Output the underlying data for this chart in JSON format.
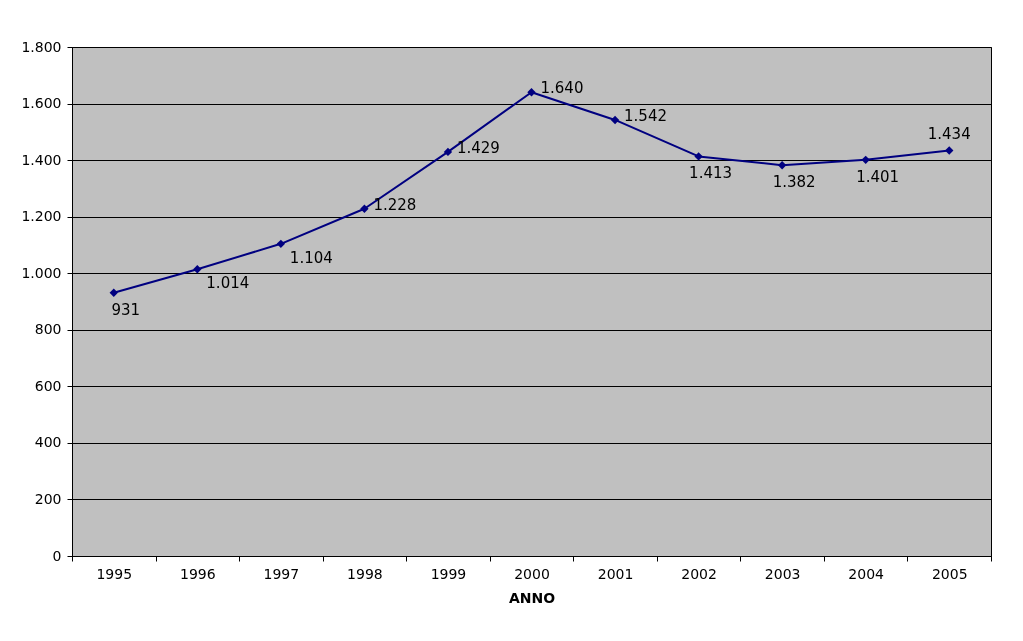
{
  "chart_data": {
    "type": "line",
    "xlabel": "ANNO",
    "categories": [
      "1995",
      "1996",
      "1997",
      "1998",
      "1999",
      "2000",
      "2001",
      "2002",
      "2003",
      "2004",
      "2005"
    ],
    "series": [
      {
        "color": "#000080",
        "values": [
          931,
          1014,
          1104,
          1228,
          1429,
          1640,
          1542,
          1413,
          1382,
          1401,
          1434
        ],
        "value_labels": [
          "931",
          "1.014",
          "1.104",
          "1.228",
          "1.429",
          "1.640",
          "1.542",
          "1.413",
          "1.382",
          "1.401",
          "1.434"
        ]
      }
    ],
    "ylim": [
      0,
      1800
    ],
    "yticks": [
      0,
      {
        "value": 200,
        "label": "200"
      },
      {
        "value": 400,
        "label": "400"
      },
      {
        "value": 600,
        "label": "600"
      },
      {
        "value": 800,
        "label": "800"
      },
      {
        "value": 1000,
        "label": "1.000"
      },
      {
        "value": 1200,
        "label": "1.200"
      },
      {
        "value": 1400,
        "label": "1.400"
      },
      {
        "value": 1600,
        "label": "1.600"
      },
      {
        "value": 1800,
        "label": "1.800"
      }
    ],
    "grid": "y",
    "legend": false,
    "marker": "diamond",
    "line_style": "solid"
  }
}
